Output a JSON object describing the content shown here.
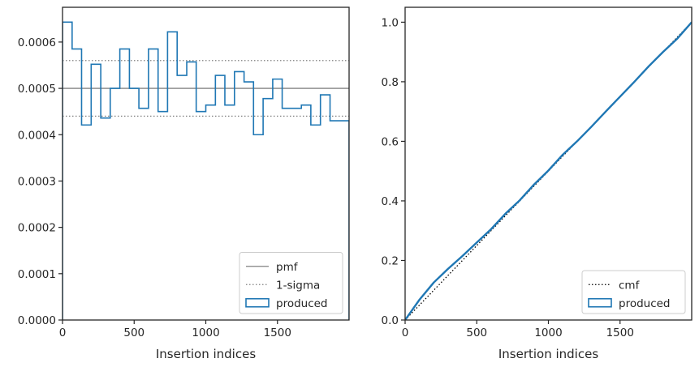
{
  "chart_data": [
    {
      "type": "histogram-step",
      "xlabel": "Insertion indices",
      "ylabel": "",
      "xlim": [
        0,
        2000
      ],
      "ylim": [
        0,
        0.000675
      ],
      "xticks": [
        0,
        500,
        1000,
        1500
      ],
      "xtick_labels": [
        "0",
        "500",
        "1000",
        "1500"
      ],
      "yticks": [
        0,
        0.0001,
        0.0002,
        0.0003,
        0.0004,
        0.0005,
        0.0006
      ],
      "ytick_labels": [
        "0.0000",
        "0.0001",
        "0.0002",
        "0.0003",
        "0.0004",
        "0.0005",
        "0.0006"
      ],
      "grid": false,
      "legend_position": "lower-right",
      "series": [
        {
          "name": "pmf",
          "style": "solid",
          "color": "#808080",
          "y": 0.0005
        },
        {
          "name": "1-sigma",
          "style": "dotted",
          "color": "#808080",
          "y": [
            0.00044,
            0.00056
          ]
        },
        {
          "name": "produced",
          "style": "step",
          "color": "#1f77b4",
          "bin_edges": [
            0,
            67,
            133,
            200,
            267,
            333,
            400,
            467,
            533,
            600,
            667,
            733,
            800,
            867,
            933,
            1000,
            1067,
            1133,
            1200,
            1267,
            1333,
            1400,
            1467,
            1533,
            1600,
            1667,
            1733,
            1800,
            1867,
            1933,
            2000
          ],
          "values": [
            0.000643,
            0.000585,
            0.000421,
            0.000552,
            0.000436,
            0.0005,
            0.000585,
            0.0005,
            0.000457,
            0.000585,
            0.00045,
            0.000622,
            0.000528,
            0.000557,
            0.00045,
            0.000464,
            0.000528,
            0.000464,
            0.000536,
            0.000514,
            0.0004,
            0.000478,
            0.00052,
            0.000457,
            0.000457,
            0.000464,
            0.000421,
            0.000486,
            0.00043,
            0.00043
          ]
        }
      ]
    },
    {
      "type": "line",
      "xlabel": "Insertion indices",
      "ylabel": "",
      "xlim": [
        0,
        2000
      ],
      "ylim": [
        0,
        1.05
      ],
      "xticks": [
        0,
        500,
        1000,
        1500
      ],
      "xtick_labels": [
        "0",
        "500",
        "1000",
        "1500"
      ],
      "yticks": [
        0,
        0.2,
        0.4,
        0.6,
        0.8,
        1.0
      ],
      "ytick_labels": [
        "0.0",
        "0.2",
        "0.4",
        "0.6",
        "0.8",
        "1.0"
      ],
      "grid": false,
      "legend_position": "lower-right",
      "series": [
        {
          "name": "cmf",
          "style": "dotted",
          "color": "#000000",
          "x": [
            0,
            2000
          ],
          "y": [
            0,
            1.0
          ]
        },
        {
          "name": "produced",
          "style": "step",
          "color": "#1f77b4",
          "x": [
            0,
            100,
            200,
            300,
            400,
            500,
            600,
            700,
            800,
            900,
            1000,
            1100,
            1200,
            1300,
            1400,
            1500,
            1600,
            1700,
            1800,
            1900,
            2000
          ],
          "y": [
            0,
            0.068,
            0.126,
            0.172,
            0.215,
            0.26,
            0.305,
            0.357,
            0.402,
            0.455,
            0.502,
            0.555,
            0.6,
            0.649,
            0.7,
            0.75,
            0.8,
            0.852,
            0.9,
            0.945,
            1.0
          ]
        }
      ]
    }
  ]
}
